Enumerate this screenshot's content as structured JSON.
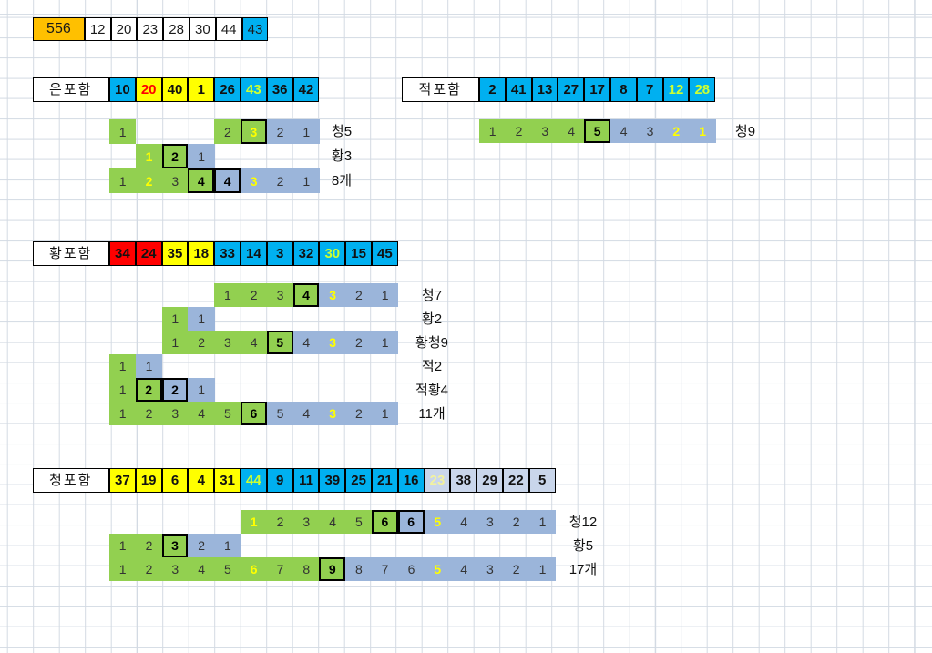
{
  "colors": {
    "orange": "#FFC000",
    "cyan": "#00B0F0",
    "yellow": "#FFFF00",
    "red": "#FF0000",
    "green": "#92D050",
    "barBlue": "#9BB5DA",
    "pale": "#C9D6EB",
    "limeText": "#CCFF33",
    "paleYellowText": "#F2F2A0",
    "gridLine": "#d3dae3"
  },
  "topRow": {
    "total": "556",
    "cells": [
      {
        "v": "12",
        "bg": "white"
      },
      {
        "v": "20",
        "bg": "white"
      },
      {
        "v": "23",
        "bg": "white"
      },
      {
        "v": "28",
        "bg": "white"
      },
      {
        "v": "30",
        "bg": "white"
      },
      {
        "v": "44",
        "bg": "white"
      },
      {
        "v": "43",
        "bg": "cyan"
      }
    ]
  },
  "sections": [
    {
      "id": "silver",
      "label": "은포함",
      "header": [
        {
          "v": "10",
          "bg": "cyan"
        },
        {
          "v": "20",
          "bg": "yellow",
          "fg": "red"
        },
        {
          "v": "40",
          "bg": "yellow"
        },
        {
          "v": "1",
          "bg": "yellow"
        },
        {
          "v": "26",
          "bg": "cyan"
        },
        {
          "v": "43",
          "bg": "cyan",
          "fg": "lime"
        },
        {
          "v": "36",
          "bg": "cyan"
        },
        {
          "v": "42",
          "bg": "cyan"
        }
      ],
      "rows": [
        {
          "label": "청5",
          "cells": [
            {
              "c": 0,
              "v": "1",
              "bg": "green"
            },
            {
              "c": 4,
              "v": "2",
              "bg": "green"
            },
            {
              "c": 5,
              "v": "3",
              "bg": "green",
              "fg": "yellow",
              "box": true
            },
            {
              "c": 6,
              "v": "2",
              "bg": "blue"
            },
            {
              "c": 7,
              "v": "1",
              "bg": "blue"
            }
          ]
        },
        {
          "label": "황3",
          "cells": [
            {
              "c": 1,
              "v": "1",
              "bg": "green",
              "fg": "yellow"
            },
            {
              "c": 2,
              "v": "2",
              "bg": "green",
              "box": true
            },
            {
              "c": 3,
              "v": "1",
              "bg": "blue"
            }
          ]
        },
        {
          "label": "8개",
          "cells": [
            {
              "c": 0,
              "v": "1",
              "bg": "green"
            },
            {
              "c": 1,
              "v": "2",
              "bg": "green",
              "fg": "yellow"
            },
            {
              "c": 2,
              "v": "3",
              "bg": "green"
            },
            {
              "c": 3,
              "v": "4",
              "bg": "green",
              "box": true
            },
            {
              "c": 4,
              "v": "4",
              "bg": "blue",
              "box": true
            },
            {
              "c": 5,
              "v": "3",
              "bg": "blue",
              "fg": "yellow"
            },
            {
              "c": 6,
              "v": "2",
              "bg": "blue"
            },
            {
              "c": 7,
              "v": "1",
              "bg": "blue"
            }
          ]
        }
      ]
    },
    {
      "id": "red",
      "label": "적포함",
      "header": [
        {
          "v": "2",
          "bg": "cyan"
        },
        {
          "v": "41",
          "bg": "cyan"
        },
        {
          "v": "13",
          "bg": "cyan"
        },
        {
          "v": "27",
          "bg": "cyan"
        },
        {
          "v": "17",
          "bg": "cyan"
        },
        {
          "v": "8",
          "bg": "cyan"
        },
        {
          "v": "7",
          "bg": "cyan"
        },
        {
          "v": "12",
          "bg": "cyan",
          "fg": "lime"
        },
        {
          "v": "28",
          "bg": "cyan",
          "fg": "lime"
        }
      ],
      "rows": [
        {
          "label": "청9",
          "cells": [
            {
              "c": 0,
              "v": "1",
              "bg": "green"
            },
            {
              "c": 1,
              "v": "2",
              "bg": "green"
            },
            {
              "c": 2,
              "v": "3",
              "bg": "green"
            },
            {
              "c": 3,
              "v": "4",
              "bg": "green"
            },
            {
              "c": 4,
              "v": "5",
              "bg": "green",
              "box": true
            },
            {
              "c": 5,
              "v": "4",
              "bg": "blue"
            },
            {
              "c": 6,
              "v": "3",
              "bg": "blue"
            },
            {
              "c": 7,
              "v": "2",
              "bg": "blue",
              "fg": "yellow"
            },
            {
              "c": 8,
              "v": "1",
              "bg": "blue",
              "fg": "yellow"
            }
          ]
        }
      ]
    },
    {
      "id": "yellow",
      "label": "황포함",
      "header": [
        {
          "v": "34",
          "bg": "red"
        },
        {
          "v": "24",
          "bg": "red"
        },
        {
          "v": "35",
          "bg": "yellow"
        },
        {
          "v": "18",
          "bg": "yellow"
        },
        {
          "v": "33",
          "bg": "cyan"
        },
        {
          "v": "14",
          "bg": "cyan"
        },
        {
          "v": "3",
          "bg": "cyan"
        },
        {
          "v": "32",
          "bg": "cyan"
        },
        {
          "v": "30",
          "bg": "cyan",
          "fg": "lime"
        },
        {
          "v": "15",
          "bg": "cyan"
        },
        {
          "v": "45",
          "bg": "cyan"
        }
      ],
      "rows": [
        {
          "label": "청7",
          "cells": [
            {
              "c": 4,
              "v": "1",
              "bg": "green"
            },
            {
              "c": 5,
              "v": "2",
              "bg": "green"
            },
            {
              "c": 6,
              "v": "3",
              "bg": "green"
            },
            {
              "c": 7,
              "v": "4",
              "bg": "green",
              "box": true
            },
            {
              "c": 8,
              "v": "3",
              "bg": "blue",
              "fg": "yellow"
            },
            {
              "c": 9,
              "v": "2",
              "bg": "blue"
            },
            {
              "c": 10,
              "v": "1",
              "bg": "blue"
            }
          ]
        },
        {
          "label": "황2",
          "cells": [
            {
              "c": 2,
              "v": "1",
              "bg": "green"
            },
            {
              "c": 3,
              "v": "1",
              "bg": "blue"
            }
          ]
        },
        {
          "label": "황청9",
          "cells": [
            {
              "c": 2,
              "v": "1",
              "bg": "green"
            },
            {
              "c": 3,
              "v": "2",
              "bg": "green"
            },
            {
              "c": 4,
              "v": "3",
              "bg": "green"
            },
            {
              "c": 5,
              "v": "4",
              "bg": "green"
            },
            {
              "c": 6,
              "v": "5",
              "bg": "green",
              "box": true
            },
            {
              "c": 7,
              "v": "4",
              "bg": "blue"
            },
            {
              "c": 8,
              "v": "3",
              "bg": "blue",
              "fg": "yellow"
            },
            {
              "c": 9,
              "v": "2",
              "bg": "blue"
            },
            {
              "c": 10,
              "v": "1",
              "bg": "blue"
            }
          ]
        },
        {
          "label": "적2",
          "cells": [
            {
              "c": 0,
              "v": "1",
              "bg": "green"
            },
            {
              "c": 1,
              "v": "1",
              "bg": "blue"
            }
          ]
        },
        {
          "label": "적황4",
          "cells": [
            {
              "c": 0,
              "v": "1",
              "bg": "green"
            },
            {
              "c": 1,
              "v": "2",
              "bg": "green",
              "box": true
            },
            {
              "c": 2,
              "v": "2",
              "bg": "blue",
              "box": true
            },
            {
              "c": 3,
              "v": "1",
              "bg": "blue"
            }
          ]
        },
        {
          "label": "11개",
          "cells": [
            {
              "c": 0,
              "v": "1",
              "bg": "green"
            },
            {
              "c": 1,
              "v": "2",
              "bg": "green"
            },
            {
              "c": 2,
              "v": "3",
              "bg": "green"
            },
            {
              "c": 3,
              "v": "4",
              "bg": "green"
            },
            {
              "c": 4,
              "v": "5",
              "bg": "green"
            },
            {
              "c": 5,
              "v": "6",
              "bg": "green",
              "box": true
            },
            {
              "c": 6,
              "v": "5",
              "bg": "blue"
            },
            {
              "c": 7,
              "v": "4",
              "bg": "blue"
            },
            {
              "c": 8,
              "v": "3",
              "bg": "blue",
              "fg": "yellow"
            },
            {
              "c": 9,
              "v": "2",
              "bg": "blue"
            },
            {
              "c": 10,
              "v": "1",
              "bg": "blue"
            }
          ]
        }
      ]
    },
    {
      "id": "blue",
      "label": "청포함",
      "header": [
        {
          "v": "37",
          "bg": "yellow"
        },
        {
          "v": "19",
          "bg": "yellow"
        },
        {
          "v": "6",
          "bg": "yellow"
        },
        {
          "v": "4",
          "bg": "yellow"
        },
        {
          "v": "31",
          "bg": "yellow"
        },
        {
          "v": "44",
          "bg": "cyan",
          "fg": "lime"
        },
        {
          "v": "9",
          "bg": "cyan"
        },
        {
          "v": "11",
          "bg": "cyan"
        },
        {
          "v": "39",
          "bg": "cyan"
        },
        {
          "v": "25",
          "bg": "cyan"
        },
        {
          "v": "21",
          "bg": "cyan"
        },
        {
          "v": "16",
          "bg": "cyan"
        },
        {
          "v": "23",
          "bg": "pale",
          "fg": "paleYellow"
        },
        {
          "v": "38",
          "bg": "pale"
        },
        {
          "v": "29",
          "bg": "pale"
        },
        {
          "v": "22",
          "bg": "pale"
        },
        {
          "v": "5",
          "bg": "pale"
        }
      ],
      "rows": [
        {
          "label": "청12",
          "cells": [
            {
              "c": 5,
              "v": "1",
              "bg": "green",
              "fg": "yellow"
            },
            {
              "c": 6,
              "v": "2",
              "bg": "green"
            },
            {
              "c": 7,
              "v": "3",
              "bg": "green"
            },
            {
              "c": 8,
              "v": "4",
              "bg": "green"
            },
            {
              "c": 9,
              "v": "5",
              "bg": "green"
            },
            {
              "c": 10,
              "v": "6",
              "bg": "green",
              "box": true
            },
            {
              "c": 11,
              "v": "6",
              "bg": "blue",
              "box": true
            },
            {
              "c": 12,
              "v": "5",
              "bg": "blue",
              "fg": "yellow"
            },
            {
              "c": 13,
              "v": "4",
              "bg": "blue"
            },
            {
              "c": 14,
              "v": "3",
              "bg": "blue"
            },
            {
              "c": 15,
              "v": "2",
              "bg": "blue"
            },
            {
              "c": 16,
              "v": "1",
              "bg": "blue"
            }
          ]
        },
        {
          "label": "황5",
          "cells": [
            {
              "c": 0,
              "v": "1",
              "bg": "green"
            },
            {
              "c": 1,
              "v": "2",
              "bg": "green"
            },
            {
              "c": 2,
              "v": "3",
              "bg": "green",
              "box": true
            },
            {
              "c": 3,
              "v": "2",
              "bg": "blue"
            },
            {
              "c": 4,
              "v": "1",
              "bg": "blue"
            }
          ]
        },
        {
          "label": "17개",
          "cells": [
            {
              "c": 0,
              "v": "1",
              "bg": "green"
            },
            {
              "c": 1,
              "v": "2",
              "bg": "green"
            },
            {
              "c": 2,
              "v": "3",
              "bg": "green"
            },
            {
              "c": 3,
              "v": "4",
              "bg": "green"
            },
            {
              "c": 4,
              "v": "5",
              "bg": "green"
            },
            {
              "c": 5,
              "v": "6",
              "bg": "green",
              "fg": "yellow"
            },
            {
              "c": 6,
              "v": "7",
              "bg": "green"
            },
            {
              "c": 7,
              "v": "8",
              "bg": "green"
            },
            {
              "c": 8,
              "v": "9",
              "bg": "green",
              "box": true
            },
            {
              "c": 9,
              "v": "8",
              "bg": "blue"
            },
            {
              "c": 10,
              "v": "7",
              "bg": "blue"
            },
            {
              "c": 11,
              "v": "6",
              "bg": "blue"
            },
            {
              "c": 12,
              "v": "5",
              "bg": "blue",
              "fg": "yellow"
            },
            {
              "c": 13,
              "v": "4",
              "bg": "blue"
            },
            {
              "c": 14,
              "v": "3",
              "bg": "blue"
            },
            {
              "c": 15,
              "v": "2",
              "bg": "blue"
            },
            {
              "c": 16,
              "v": "1",
              "bg": "blue"
            }
          ]
        }
      ]
    }
  ]
}
